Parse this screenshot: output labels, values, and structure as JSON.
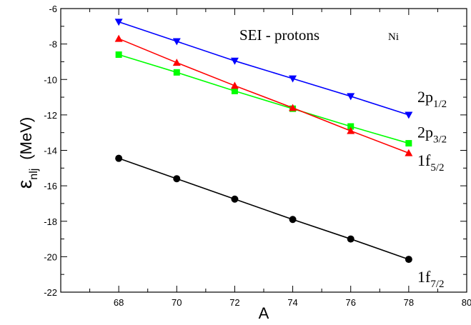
{
  "chart_data": {
    "type": "line",
    "title": "SEI  -  protons",
    "subtitle": "Ni",
    "xlabel": "A",
    "ylabel_main": "ε",
    "ylabel_sub": "nlj",
    "ylabel_unit": "(MeV)",
    "xlim": [
      66,
      80
    ],
    "ylim": [
      -22,
      -6
    ],
    "x_ticks": [
      68,
      70,
      72,
      74,
      76,
      78,
      80
    ],
    "y_ticks": [
      -22,
      -20,
      -18,
      -16,
      -14,
      -12,
      -10,
      -8,
      -6
    ],
    "grid": false,
    "legend": "none",
    "x": [
      68,
      70,
      72,
      74,
      76,
      78
    ],
    "series": [
      {
        "label_main": "2p",
        "label_sub": "1/2",
        "color": "#0000ff",
        "marker": "triangle-down",
        "values": [
          -6.75,
          -7.85,
          -8.95,
          -9.95,
          -10.95,
          -12.0
        ]
      },
      {
        "label_main": "2p",
        "label_sub": "3/2",
        "color": "#00ff00",
        "marker": "square",
        "values": [
          -8.6,
          -9.6,
          -10.65,
          -11.65,
          -12.65,
          -13.6
        ]
      },
      {
        "label_main": "1f",
        "label_sub": "5/2",
        "color": "#ff0000",
        "marker": "triangle-up",
        "values": [
          -7.7,
          -9.05,
          -10.35,
          -11.6,
          -12.9,
          -14.15
        ]
      },
      {
        "label_main": "1f",
        "label_sub": "7/2",
        "color": "#000000",
        "marker": "circle",
        "values": [
          -14.45,
          -15.6,
          -16.75,
          -17.9,
          -19.0,
          -20.15
        ]
      }
    ]
  }
}
